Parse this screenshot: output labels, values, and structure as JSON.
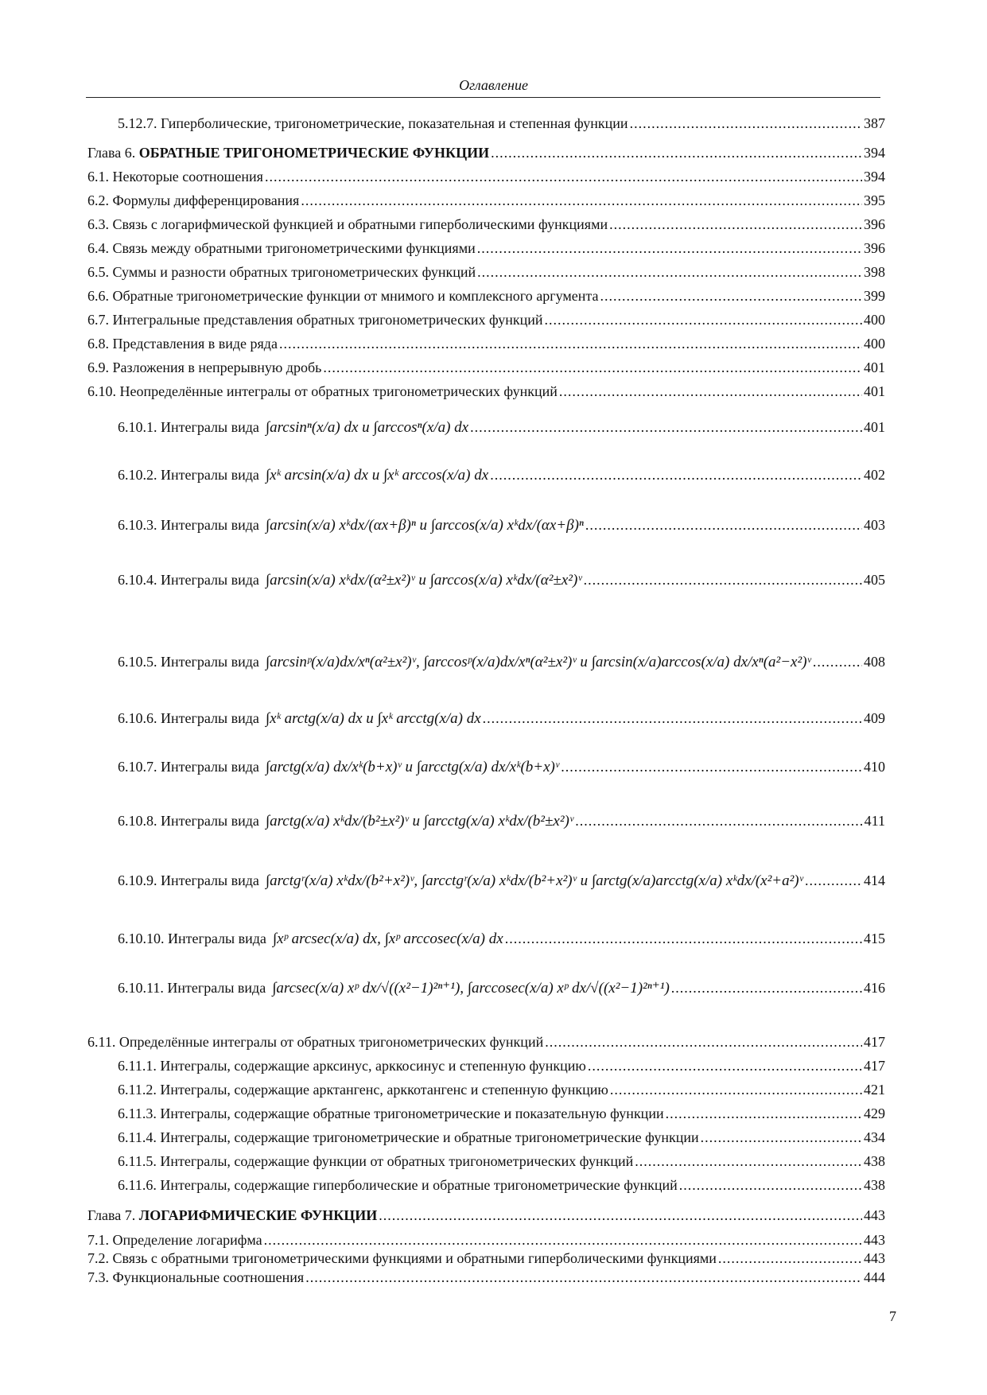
{
  "header": "Оглавление",
  "page_number": "7",
  "entries": [
    {
      "label": "5.12.7. Гиперболические, тригонометрические, показательная и степенная функции",
      "page": "387"
    },
    {
      "prefix": "Глава 6. ",
      "label": "ОБРАТНЫЕ ТРИГОНОМЕТРИЧЕСКИЕ ФУНКЦИИ",
      "page": "394"
    },
    {
      "label": "6.1. Некоторые соотношения",
      "page": "394"
    },
    {
      "label": "6.2. Формулы дифференцирования",
      "page": "395"
    },
    {
      "label": "6.3. Связь с логарифмической функцией и обратными гиперболическими функциями",
      "page": "396"
    },
    {
      "label": "6.4. Связь между обратными тригонометрическими функциями",
      "page": "396"
    },
    {
      "label": "6.5. Суммы и разности обратных тригонометрических функций",
      "page": "398"
    },
    {
      "label": "6.6. Обратные тригонометрические функции от мнимого и комплексного аргумента",
      "page": "399"
    },
    {
      "label": "6.7. Интегральные представления обратных тригонометрических функций",
      "page": "400"
    },
    {
      "label": "6.8. Представления в виде ряда",
      "page": "400"
    },
    {
      "label": "6.9. Разложения в непрерывную дробь",
      "page": "401"
    },
    {
      "label": "6.10. Неопределённые интегралы от обратных тригонометрических функций",
      "page": "401"
    },
    {
      "label": "6.10.1. Интегралы вида",
      "formula": "∫arcsinⁿ(x/a) dx  и  ∫arccosⁿ(x/a) dx",
      "page": "401"
    },
    {
      "label": "6.10.2. Интегралы вида",
      "formula": "∫xᵏ arcsin(x/a) dx  и  ∫xᵏ arccos(x/a) dx",
      "page": "402"
    },
    {
      "label": "6.10.3. Интегралы вида",
      "formula": "∫arcsin(x/a) xᵏdx/(αx+β)ⁿ  и  ∫arccos(x/a) xᵏdx/(αx+β)ⁿ",
      "page": "403"
    },
    {
      "label": "6.10.4. Интегралы вида",
      "formula": "∫arcsin(x/a) xᵏdx/(α²±x²)ᵛ  и  ∫arccos(x/a) xᵏdx/(α²±x²)ᵛ",
      "page": "405"
    },
    {
      "label": "6.10.5. Интегралы вида",
      "formula": "∫arcsinᵖ(x/a)dx/xⁿ(α²±x²)ᵛ, ∫arccosᵖ(x/a)dx/xⁿ(α²±x²)ᵛ и ∫arcsin(x/a)arccos(x/a) dx/xⁿ(a²−x²)ᵛ",
      "page": "408"
    },
    {
      "label": "6.10.6. Интегралы вида",
      "formula": "∫xᵏ arctg(x/a) dx  и  ∫xᵏ arcctg(x/a) dx",
      "page": "409"
    },
    {
      "label": "6.10.7. Интегралы вида",
      "formula": "∫arctg(x/a) dx/xᵏ(b+x)ᵛ  и  ∫arcctg(x/a) dx/xᵏ(b+x)ᵛ",
      "page": "410"
    },
    {
      "label": "6.10.8. Интегралы вида",
      "formula": "∫arctg(x/a) xᵏdx/(b²±x²)ᵛ  и  ∫arcctg(x/a) xᵏdx/(b²±x²)ᵛ",
      "page": "411"
    },
    {
      "label": "6.10.9. Интегралы вида",
      "formula": "∫arctgʳ(x/a) xᵏdx/(b²+x²)ᵛ, ∫arcctgʳ(x/a) xᵏdx/(b²+x²)ᵛ и ∫arctg(x/a)arcctg(x/a) xᵏdx/(x²+a²)ᵛ",
      "page": "414"
    },
    {
      "label": "6.10.10. Интегралы вида",
      "formula": "∫xᵖ arcsec(x/a) dx,   ∫xᵖ arccosec(x/a) dx",
      "page": "415"
    },
    {
      "label": "6.10.11. Интегралы вида",
      "formula": "∫arcsec(x/a) xᵖ dx/√((x²−1)²ⁿ⁺¹),   ∫arccosec(x/a) xᵖ dx/√((x²−1)²ⁿ⁺¹)",
      "page": "416"
    },
    {
      "label": "6.11. Определённые интегралы от обратных тригонометрических функций",
      "page": "417"
    },
    {
      "label": "6.11.1. Интегралы, содержащие арксинус, арккосинус и степенную функцию",
      "page": "417"
    },
    {
      "label": "6.11.2. Интегралы, содержащие арктангенс, арккотангенс и степенную функцию",
      "page": "421"
    },
    {
      "label": "6.11.3. Интегралы, содержащие обратные тригонометрические и показательную функции",
      "page": "429"
    },
    {
      "label": "6.11.4. Интегралы, содержащие тригонометрические и обратные тригонометрические функции",
      "page": "434"
    },
    {
      "label": "6.11.5. Интегралы, содержащие функции от обратных тригонометрических функций",
      "page": "438"
    },
    {
      "label": "6.11.6. Интегралы, содержащие гиперболические и обратные тригонометрические функций",
      "page": "438"
    },
    {
      "prefix": "Глава 7. ",
      "label": "ЛОГАРИФМИЧЕСКИЕ ФУНКЦИИ",
      "page": "443"
    },
    {
      "label": "7.1. Определение логарифма",
      "page": "443"
    },
    {
      "label": "7.2. Связь с обратными тригонометрическими функциями и обратными гиперболическими функциями",
      "page": "443"
    },
    {
      "label": "7.3. Функциональные соотношения",
      "page": "444"
    }
  ]
}
